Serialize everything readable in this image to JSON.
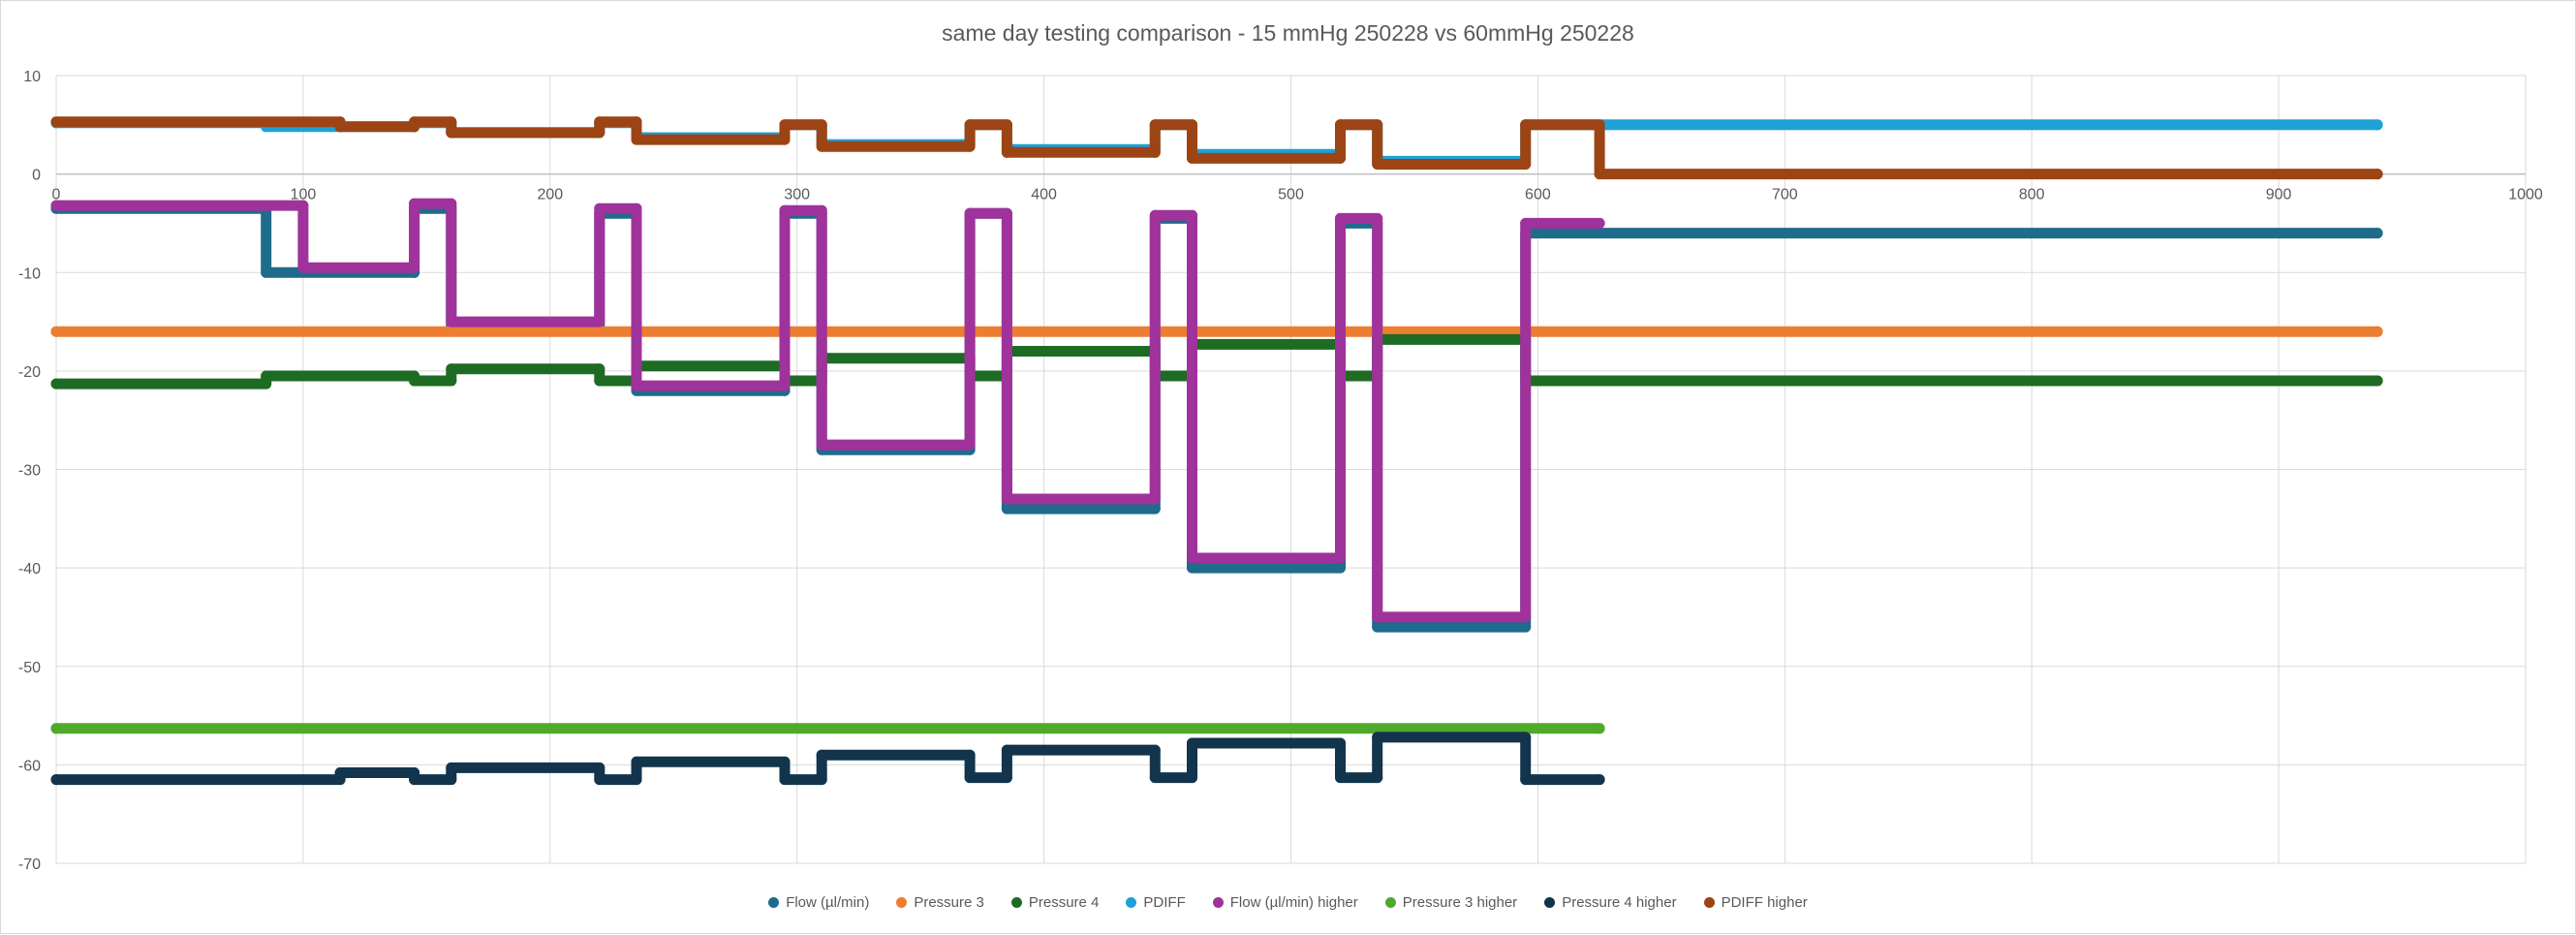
{
  "chart_data": {
    "type": "scatter",
    "title": "same day testing comparison - 15 mmHg 250228 vs 60mmHg 250228",
    "xlabel": "",
    "ylabel": "",
    "xlim": [
      0,
      1000
    ],
    "ylim": [
      -70,
      10
    ],
    "x_ticks": [
      "0",
      "100",
      "200",
      "300",
      "400",
      "500",
      "600",
      "700",
      "800",
      "900",
      "1000"
    ],
    "y_ticks": [
      "10",
      "0",
      "-10",
      "-20",
      "-30",
      "-40",
      "-50",
      "-60",
      "-70"
    ],
    "grid": true,
    "legend_position": "bottom",
    "series": [
      {
        "name": "Flow (µl/min)",
        "color": "#1f6b8c",
        "points": [
          [
            0,
            -3.5
          ],
          [
            85,
            -3.5
          ],
          [
            85,
            -10
          ],
          [
            145,
            -10
          ],
          [
            145,
            -3.5
          ],
          [
            160,
            -3.5
          ],
          [
            160,
            -15.5
          ],
          [
            220,
            -15.5
          ],
          [
            220,
            -4
          ],
          [
            235,
            -4
          ],
          [
            235,
            -22
          ],
          [
            295,
            -22
          ],
          [
            295,
            -4
          ],
          [
            310,
            -4
          ],
          [
            310,
            -28
          ],
          [
            370,
            -28
          ],
          [
            370,
            -4
          ],
          [
            385,
            -4
          ],
          [
            385,
            -34
          ],
          [
            445,
            -34
          ],
          [
            445,
            -4.5
          ],
          [
            460,
            -4.5
          ],
          [
            460,
            -40
          ],
          [
            520,
            -40
          ],
          [
            520,
            -5
          ],
          [
            535,
            -5
          ],
          [
            535,
            -46
          ],
          [
            595,
            -46
          ],
          [
            595,
            -6
          ],
          [
            940,
            -6
          ]
        ]
      },
      {
        "name": "Pressure 3",
        "color": "#ed7d31",
        "points": [
          [
            0,
            -16
          ],
          [
            940,
            -16
          ]
        ]
      },
      {
        "name": "Pressure 4",
        "color": "#1e6b24",
        "points": [
          [
            0,
            -21.3
          ],
          [
            85,
            -21.3
          ],
          [
            85,
            -20.5
          ],
          [
            145,
            -20.5
          ],
          [
            145,
            -21
          ],
          [
            160,
            -21
          ],
          [
            160,
            -19.8
          ],
          [
            220,
            -19.8
          ],
          [
            220,
            -21
          ],
          [
            235,
            -21
          ],
          [
            235,
            -19.5
          ],
          [
            295,
            -19.5
          ],
          [
            295,
            -21
          ],
          [
            310,
            -21
          ],
          [
            310,
            -18.7
          ],
          [
            370,
            -18.7
          ],
          [
            370,
            -20.5
          ],
          [
            385,
            -20.5
          ],
          [
            385,
            -18
          ],
          [
            445,
            -18
          ],
          [
            445,
            -20.5
          ],
          [
            460,
            -20.5
          ],
          [
            460,
            -17.3
          ],
          [
            520,
            -17.3
          ],
          [
            520,
            -20.5
          ],
          [
            535,
            -20.5
          ],
          [
            535,
            -16.8
          ],
          [
            595,
            -16.8
          ],
          [
            595,
            -21
          ],
          [
            940,
            -21
          ]
        ]
      },
      {
        "name": "PDIFF",
        "color": "#1ea0d8",
        "points": [
          [
            0,
            5.2
          ],
          [
            85,
            5.2
          ],
          [
            85,
            4.8
          ],
          [
            145,
            4.8
          ],
          [
            145,
            5.2
          ],
          [
            160,
            5.2
          ],
          [
            160,
            4.2
          ],
          [
            220,
            4.2
          ],
          [
            220,
            5.2
          ],
          [
            235,
            5.2
          ],
          [
            235,
            3.7
          ],
          [
            295,
            3.7
          ],
          [
            295,
            5
          ],
          [
            310,
            5
          ],
          [
            310,
            3
          ],
          [
            370,
            3
          ],
          [
            370,
            5
          ],
          [
            385,
            5
          ],
          [
            385,
            2.5
          ],
          [
            445,
            2.5
          ],
          [
            445,
            5
          ],
          [
            460,
            5
          ],
          [
            460,
            2
          ],
          [
            520,
            2
          ],
          [
            520,
            5
          ],
          [
            535,
            5
          ],
          [
            535,
            1.3
          ],
          [
            595,
            1.3
          ],
          [
            595,
            5
          ],
          [
            940,
            5
          ]
        ]
      },
      {
        "name": "Flow (µl/min) higher",
        "color": "#a0329c",
        "points": [
          [
            0,
            -3.2
          ],
          [
            100,
            -3.2
          ],
          [
            100,
            -9.5
          ],
          [
            145,
            -9.5
          ],
          [
            145,
            -3
          ],
          [
            160,
            -3
          ],
          [
            160,
            -15
          ],
          [
            220,
            -15
          ],
          [
            220,
            -3.5
          ],
          [
            235,
            -3.5
          ],
          [
            235,
            -21.5
          ],
          [
            295,
            -21.5
          ],
          [
            295,
            -3.7
          ],
          [
            310,
            -3.7
          ],
          [
            310,
            -27.5
          ],
          [
            370,
            -27.5
          ],
          [
            370,
            -4
          ],
          [
            385,
            -4
          ],
          [
            385,
            -33
          ],
          [
            445,
            -33
          ],
          [
            445,
            -4.2
          ],
          [
            460,
            -4.2
          ],
          [
            460,
            -39
          ],
          [
            520,
            -39
          ],
          [
            520,
            -4.5
          ],
          [
            535,
            -4.5
          ],
          [
            535,
            -45
          ],
          [
            595,
            -45
          ],
          [
            595,
            -5
          ],
          [
            625,
            -5
          ]
        ]
      },
      {
        "name": "Pressure 3 higher",
        "color": "#4faa2c",
        "points": [
          [
            0,
            -56.3
          ],
          [
            625,
            -56.3
          ]
        ]
      },
      {
        "name": "Pressure 4 higher",
        "color": "#12344d",
        "points": [
          [
            0,
            -61.5
          ],
          [
            115,
            -61.5
          ],
          [
            115,
            -60.8
          ],
          [
            145,
            -60.8
          ],
          [
            145,
            -61.5
          ],
          [
            160,
            -61.5
          ],
          [
            160,
            -60.3
          ],
          [
            220,
            -60.3
          ],
          [
            220,
            -61.5
          ],
          [
            235,
            -61.5
          ],
          [
            235,
            -59.7
          ],
          [
            295,
            -59.7
          ],
          [
            295,
            -61.5
          ],
          [
            310,
            -61.5
          ],
          [
            310,
            -59
          ],
          [
            370,
            -59
          ],
          [
            370,
            -61.3
          ],
          [
            385,
            -61.3
          ],
          [
            385,
            -58.5
          ],
          [
            445,
            -58.5
          ],
          [
            445,
            -61.3
          ],
          [
            460,
            -61.3
          ],
          [
            460,
            -57.8
          ],
          [
            520,
            -57.8
          ],
          [
            520,
            -61.3
          ],
          [
            535,
            -61.3
          ],
          [
            535,
            -57.2
          ],
          [
            595,
            -57.2
          ],
          [
            595,
            -61.5
          ],
          [
            625,
            -61.5
          ]
        ]
      },
      {
        "name": "PDIFF higher",
        "color": "#9c4414",
        "points": [
          [
            0,
            5.3
          ],
          [
            115,
            5.3
          ],
          [
            115,
            4.8
          ],
          [
            145,
            4.8
          ],
          [
            145,
            5.3
          ],
          [
            160,
            5.3
          ],
          [
            160,
            4.2
          ],
          [
            220,
            4.2
          ],
          [
            220,
            5.3
          ],
          [
            235,
            5.3
          ],
          [
            235,
            3.5
          ],
          [
            295,
            3.5
          ],
          [
            295,
            5
          ],
          [
            310,
            5
          ],
          [
            310,
            2.8
          ],
          [
            370,
            2.8
          ],
          [
            370,
            5
          ],
          [
            385,
            5
          ],
          [
            385,
            2.2
          ],
          [
            445,
            2.2
          ],
          [
            445,
            5
          ],
          [
            460,
            5
          ],
          [
            460,
            1.6
          ],
          [
            520,
            1.6
          ],
          [
            520,
            5
          ],
          [
            535,
            5
          ],
          [
            535,
            1
          ],
          [
            595,
            1
          ],
          [
            595,
            5
          ],
          [
            625,
            5
          ],
          [
            625,
            0
          ],
          [
            940,
            0
          ]
        ]
      }
    ]
  }
}
